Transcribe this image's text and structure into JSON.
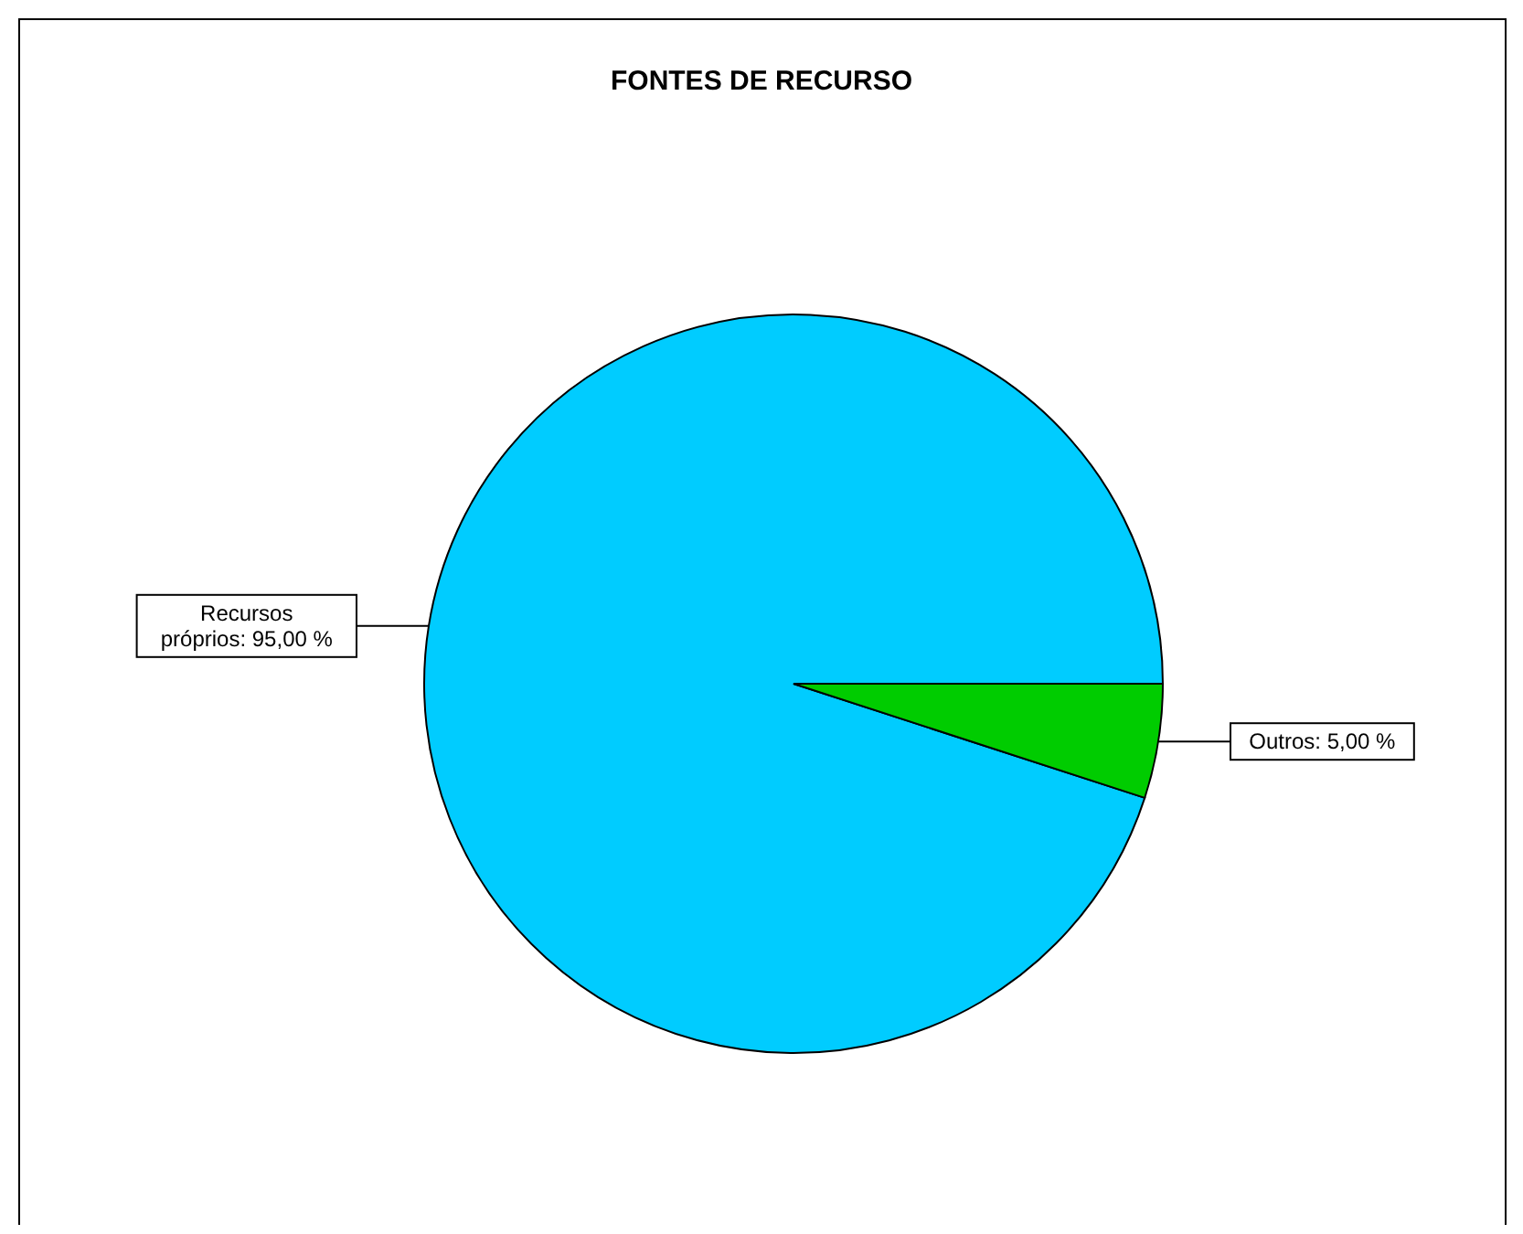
{
  "chart_data": {
    "type": "pie",
    "title": "FONTES DE RECURSO",
    "categories": [
      "Recursos próprios",
      "Outros"
    ],
    "values": [
      95,
      5
    ],
    "colors": [
      "#00ccff",
      "#00cc00"
    ],
    "value_labels": [
      "95,00 %",
      "5,00 %"
    ],
    "legend": false
  }
}
